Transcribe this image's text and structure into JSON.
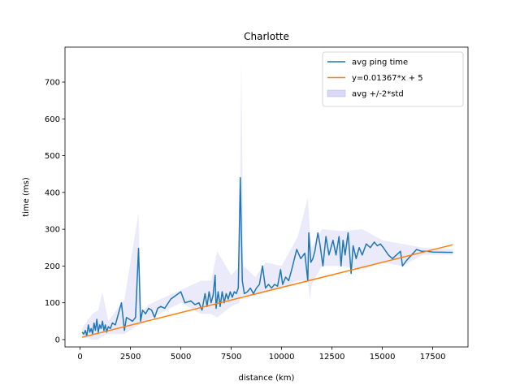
{
  "chart_data": {
    "type": "line",
    "title": "Charlotte",
    "xlabel": "distance (km)",
    "ylabel": "time (ms)",
    "xlim": [
      -750,
      19250
    ],
    "ylim": [
      -20,
      795
    ],
    "xticks": [
      0,
      2500,
      5000,
      7500,
      10000,
      12500,
      15000,
      17500
    ],
    "yticks": [
      0,
      100,
      200,
      300,
      400,
      500,
      600,
      700
    ],
    "legend_position": "top-right",
    "series": [
      {
        "name": "avg ping time",
        "kind": "line",
        "color": "#1f77b4",
        "x": [
          100,
          180,
          260,
          330,
          410,
          480,
          550,
          620,
          690,
          760,
          830,
          900,
          970,
          1040,
          1110,
          1180,
          1250,
          1320,
          1400,
          1500,
          1600,
          1750,
          1900,
          2050,
          2200,
          2300,
          2450,
          2600,
          2750,
          2900,
          3000,
          3100,
          3250,
          3400,
          3550,
          3700,
          3850,
          4000,
          4200,
          4500,
          5000,
          5200,
          5500,
          5700,
          5900,
          6050,
          6200,
          6300,
          6400,
          6500,
          6600,
          6700,
          6750,
          6850,
          6950,
          7050,
          7150,
          7250,
          7350,
          7450,
          7550,
          7650,
          7750,
          7850,
          7950,
          8050,
          8150,
          8300,
          8450,
          8600,
          8750,
          8900,
          9050,
          9200,
          9350,
          9500,
          9650,
          9800,
          9950,
          10050,
          10200,
          10350,
          10500,
          10750,
          10950,
          11150,
          11300,
          11350,
          11450,
          11550,
          11650,
          11800,
          11900,
          12050,
          12200,
          12350,
          12450,
          12550,
          12700,
          12850,
          12950,
          13050,
          13150,
          13300,
          13450,
          13550,
          13700,
          13850,
          14000,
          14200,
          14400,
          14600,
          14750,
          14900,
          15050,
          15300,
          15500,
          15700,
          15900,
          16000,
          16200,
          16450,
          16700,
          16950,
          17200,
          17500,
          18500
        ],
        "y": [
          20,
          15,
          25,
          10,
          40,
          20,
          30,
          15,
          45,
          25,
          55,
          20,
          40,
          30,
          50,
          25,
          40,
          20,
          35,
          30,
          45,
          40,
          70,
          100,
          25,
          60,
          55,
          50,
          60,
          248,
          50,
          80,
          70,
          85,
          80,
          60,
          85,
          90,
          85,
          110,
          130,
          100,
          105,
          95,
          100,
          80,
          125,
          90,
          130,
          100,
          120,
          175,
          85,
          130,
          90,
          130,
          100,
          125,
          110,
          130,
          115,
          130,
          125,
          140,
          440,
          160,
          125,
          130,
          140,
          125,
          140,
          150,
          200,
          140,
          150,
          140,
          150,
          145,
          190,
          150,
          170,
          160,
          190,
          245,
          220,
          235,
          160,
          290,
          210,
          220,
          240,
          290,
          260,
          200,
          280,
          230,
          250,
          270,
          230,
          280,
          200,
          270,
          230,
          290,
          180,
          255,
          220,
          250,
          230,
          260,
          250,
          265,
          255,
          260,
          250,
          230,
          220,
          230,
          240,
          200,
          215,
          230,
          245,
          240,
          240,
          238,
          237
        ]
      },
      {
        "name": "y=0.01367*x + 5",
        "kind": "line",
        "color": "#ff7f0e",
        "x": [
          100,
          18500
        ],
        "y": [
          6.367,
          257.895
        ]
      },
      {
        "name": "avg +/-2*std",
        "kind": "band",
        "color": "#d9d9f7",
        "x": [
          100,
          600,
          900,
          1100,
          1400,
          2200,
          2900,
          3000,
          3400,
          5000,
          6000,
          6500,
          6800,
          7500,
          7900,
          8000,
          8100,
          8700,
          9200,
          10000,
          10800,
          11300,
          11400,
          11500,
          12000,
          13000,
          14000,
          15000,
          16000,
          17000,
          18500
        ],
        "upper": [
          30,
          70,
          80,
          130,
          50,
          110,
          345,
          70,
          95,
          135,
          160,
          160,
          240,
          175,
          200,
          760,
          200,
          170,
          210,
          200,
          280,
          385,
          300,
          250,
          300,
          295,
          300,
          270,
          260,
          250,
          245
        ],
        "lower": [
          10,
          0,
          0,
          10,
          15,
          15,
          40,
          40,
          55,
          100,
          70,
          70,
          60,
          90,
          100,
          120,
          120,
          120,
          130,
          140,
          160,
          160,
          110,
          150,
          200,
          200,
          190,
          210,
          200,
          230,
          230
        ]
      }
    ]
  }
}
